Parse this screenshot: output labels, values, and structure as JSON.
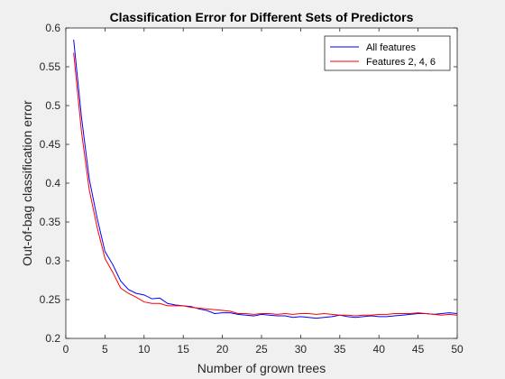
{
  "chart_data": {
    "type": "line",
    "title": "Classification Error for Different Sets of Predictors",
    "xlabel": "Number of grown trees",
    "ylabel": "Out-of-bag classification error",
    "xlim": [
      0,
      50
    ],
    "ylim": [
      0.2,
      0.6
    ],
    "xticks": [
      0,
      5,
      10,
      15,
      20,
      25,
      30,
      35,
      40,
      45,
      50
    ],
    "yticks": [
      0.2,
      0.25,
      0.3,
      0.35,
      0.4,
      0.45,
      0.5,
      0.55,
      0.6
    ],
    "grid": false,
    "legend_position": "top-right",
    "x": [
      1,
      2,
      3,
      4,
      5,
      6,
      7,
      8,
      9,
      10,
      11,
      12,
      13,
      14,
      15,
      16,
      17,
      18,
      19,
      20,
      21,
      22,
      23,
      24,
      25,
      26,
      27,
      28,
      29,
      30,
      31,
      32,
      33,
      34,
      35,
      36,
      37,
      38,
      39,
      40,
      41,
      42,
      43,
      44,
      45,
      46,
      47,
      48,
      49,
      50
    ],
    "series": [
      {
        "name": "All features",
        "color": "#0000ff",
        "values": [
          0.585,
          0.485,
          0.405,
          0.355,
          0.312,
          0.295,
          0.274,
          0.263,
          0.258,
          0.256,
          0.251,
          0.252,
          0.245,
          0.243,
          0.242,
          0.241,
          0.238,
          0.236,
          0.232,
          0.233,
          0.233,
          0.231,
          0.23,
          0.229,
          0.231,
          0.23,
          0.229,
          0.229,
          0.227,
          0.228,
          0.227,
          0.226,
          0.227,
          0.228,
          0.23,
          0.228,
          0.227,
          0.228,
          0.229,
          0.228,
          0.228,
          0.229,
          0.23,
          0.231,
          0.232,
          0.232,
          0.231,
          0.232,
          0.233,
          0.232
        ]
      },
      {
        "name": "Features 2, 4, 6",
        "color": "#ff0000",
        "values": [
          0.568,
          0.466,
          0.391,
          0.343,
          0.303,
          0.285,
          0.265,
          0.258,
          0.253,
          0.247,
          0.245,
          0.245,
          0.242,
          0.242,
          0.242,
          0.24,
          0.239,
          0.238,
          0.237,
          0.236,
          0.235,
          0.232,
          0.232,
          0.231,
          0.232,
          0.232,
          0.231,
          0.232,
          0.231,
          0.232,
          0.232,
          0.231,
          0.232,
          0.231,
          0.23,
          0.23,
          0.229,
          0.23,
          0.23,
          0.231,
          0.231,
          0.232,
          0.232,
          0.232,
          0.233,
          0.232,
          0.231,
          0.23,
          0.231,
          0.23
        ]
      }
    ]
  }
}
